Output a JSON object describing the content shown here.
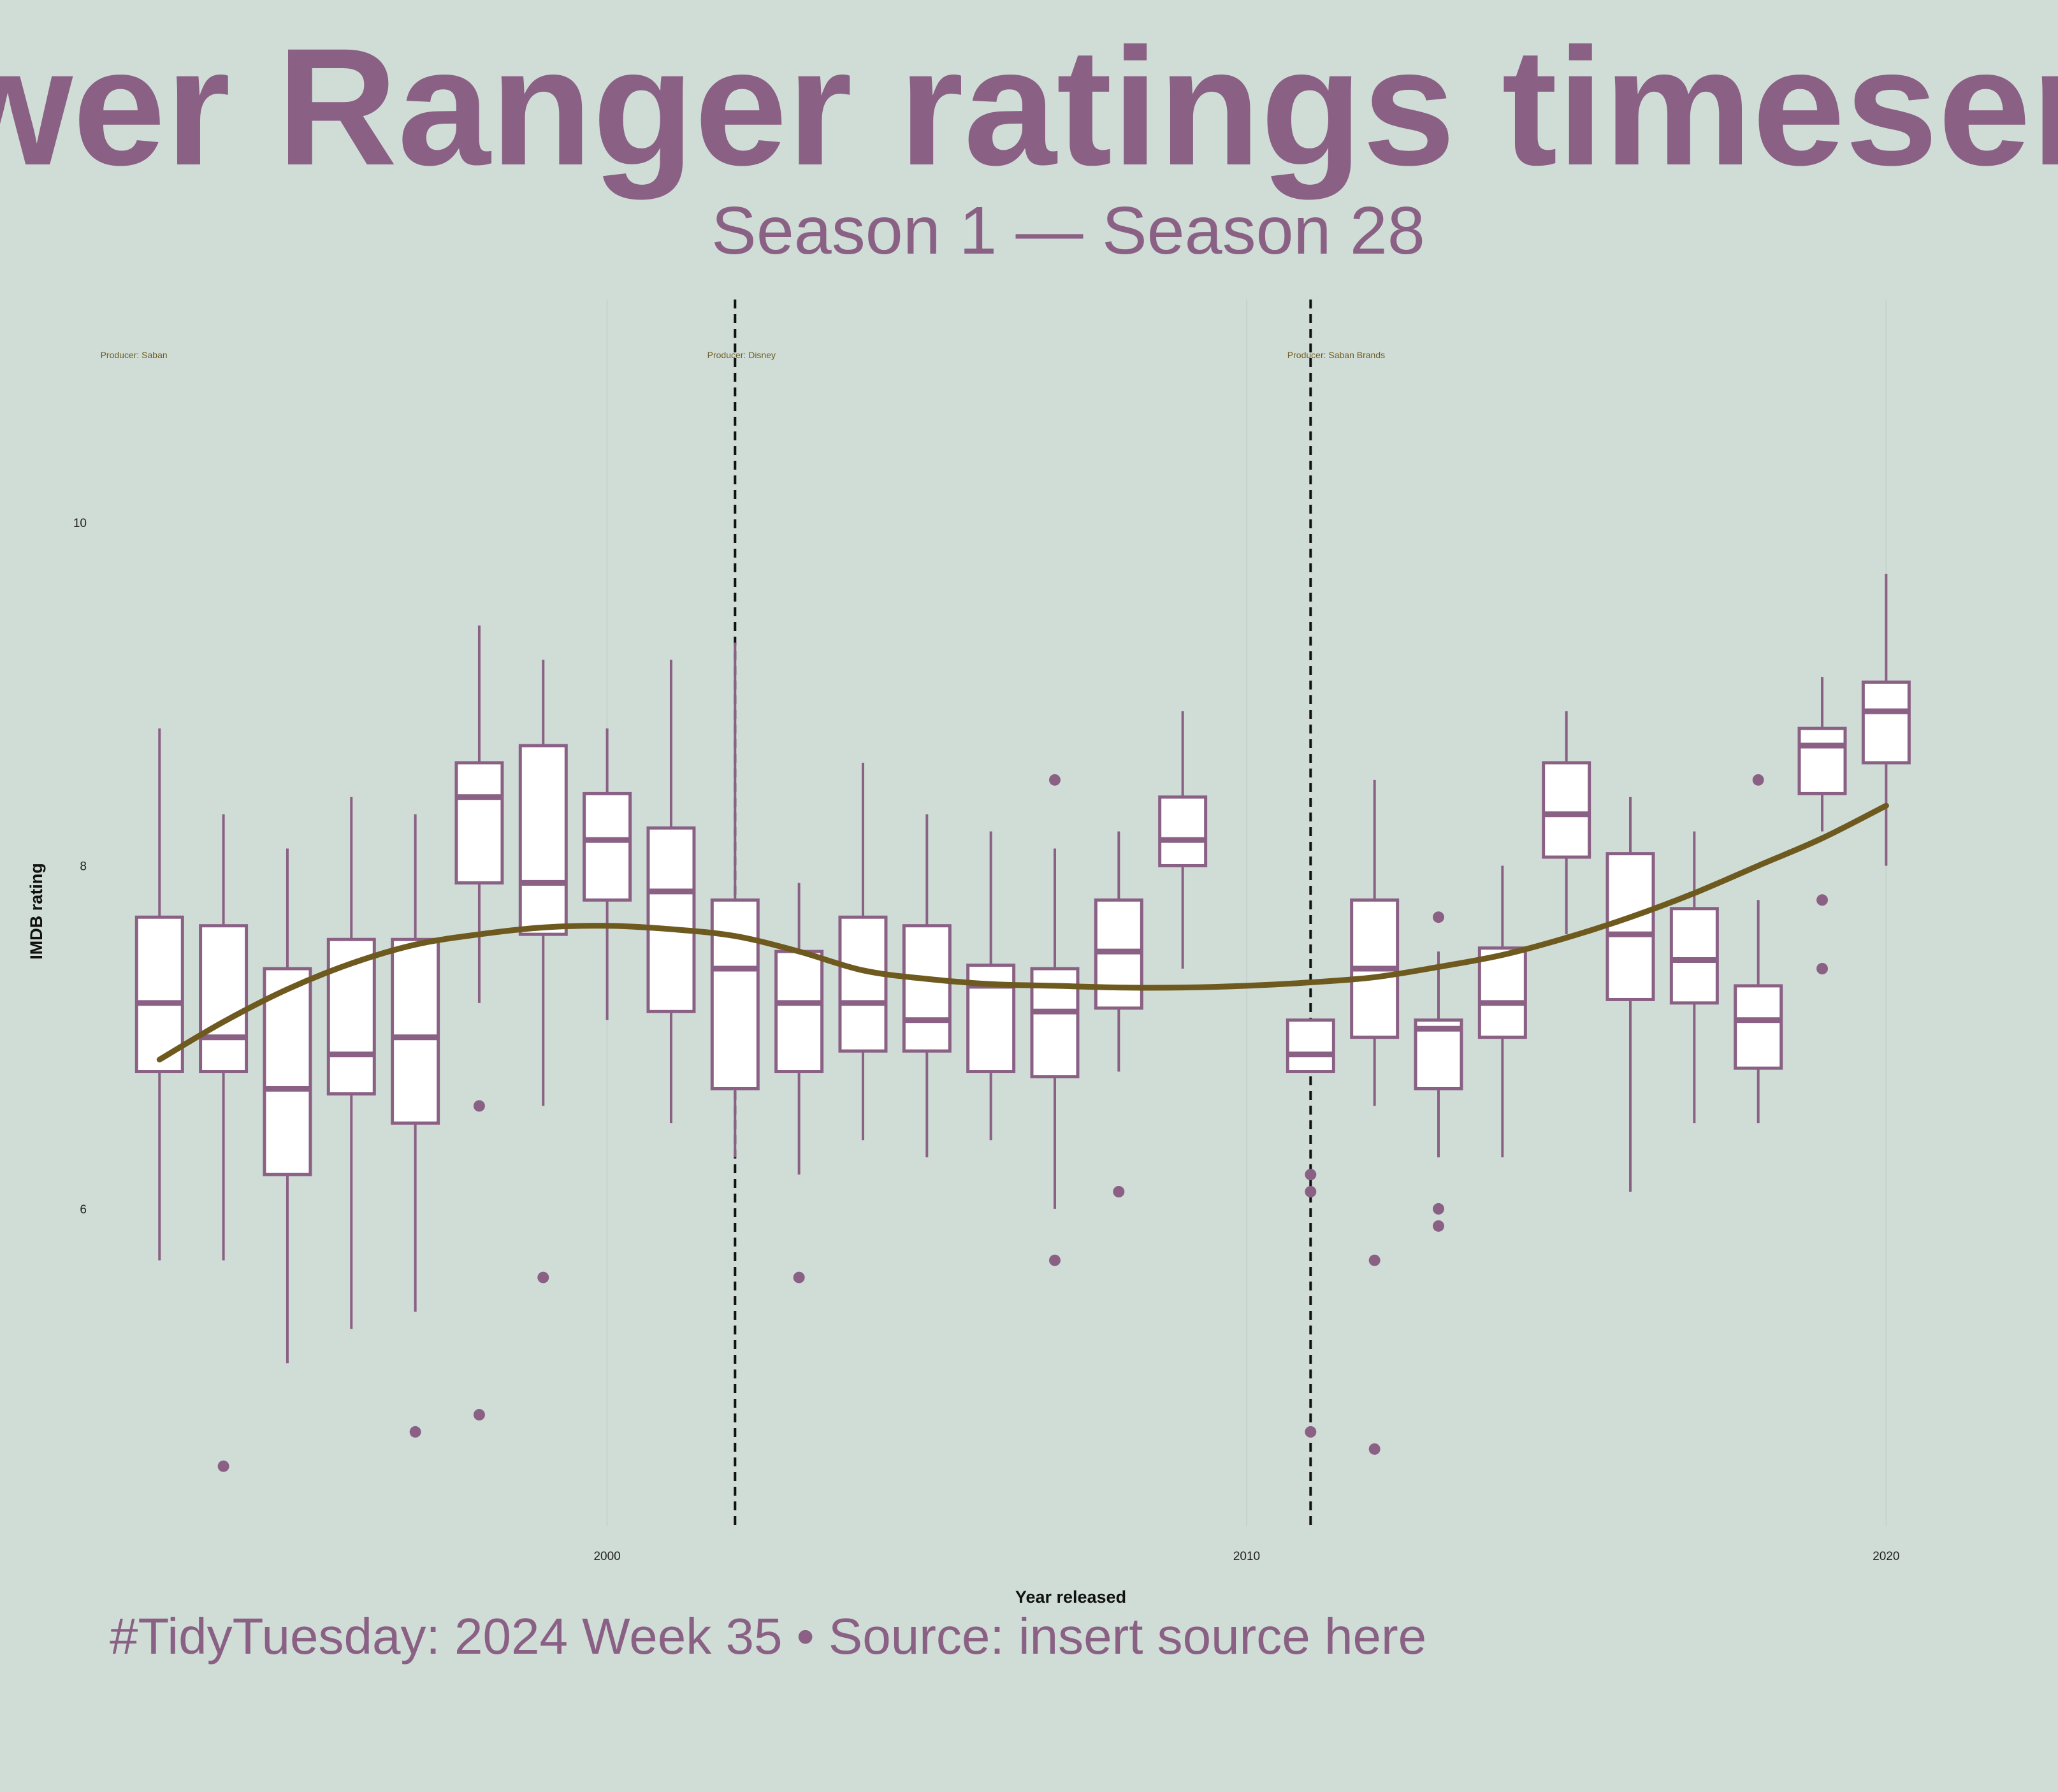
{
  "title": "Power Ranger ratings timeseries",
  "subtitle": "Season 1 — Season 28",
  "caption": "#TidyTuesday: 2024 Week 35 • Source: insert source here",
  "colors": {
    "background": "#d0ddd7",
    "accent": "#8a6184",
    "trend": "#6e5a1e",
    "box_fill": "#ffffff",
    "grid": "#c6d3cd",
    "dashed": "#111111"
  },
  "chart_data": {
    "type": "boxplot",
    "xlabel": "Year released",
    "ylabel": "IMDB rating",
    "xlim": [
      1992.2,
      2021.9
    ],
    "ylim": [
      4.15,
      11.3
    ],
    "x_ticks": [
      2000,
      2010,
      2020
    ],
    "y_ticks": [
      6,
      8,
      10
    ],
    "grid": "vertical major lines only",
    "producer_eras": [
      {
        "label": "Producer: Saban",
        "x": 1992.6
      },
      {
        "label": "Producer: Disney",
        "x": 2002.1
      },
      {
        "label": "Producer: Saban Brands",
        "x": 2011.4
      }
    ],
    "era_breaks": [
      2002,
      2011
    ],
    "boxes": [
      {
        "year": 1993,
        "min": 5.7,
        "q1": 6.8,
        "median": 7.2,
        "q3": 7.7,
        "max": 8.8,
        "outliers": []
      },
      {
        "year": 1994,
        "min": 5.7,
        "q1": 6.8,
        "median": 7.0,
        "q3": 7.65,
        "max": 8.3,
        "outliers": [
          4.5
        ]
      },
      {
        "year": 1995,
        "min": 5.1,
        "q1": 6.2,
        "median": 6.7,
        "q3": 7.4,
        "max": 8.1,
        "outliers": []
      },
      {
        "year": 1996,
        "min": 5.3,
        "q1": 6.67,
        "median": 6.9,
        "q3": 7.57,
        "max": 8.4,
        "outliers": []
      },
      {
        "year": 1997,
        "min": 5.4,
        "q1": 6.5,
        "median": 7.0,
        "q3": 7.57,
        "max": 8.3,
        "outliers": [
          4.7
        ]
      },
      {
        "year": 1998,
        "min": 7.2,
        "q1": 7.9,
        "median": 8.4,
        "q3": 8.6,
        "max": 9.4,
        "outliers": [
          6.6,
          4.8
        ]
      },
      {
        "year": 1999,
        "min": 6.6,
        "q1": 7.6,
        "median": 7.9,
        "q3": 8.7,
        "max": 9.2,
        "outliers": [
          5.6
        ]
      },
      {
        "year": 2000,
        "min": 7.1,
        "q1": 7.8,
        "median": 8.15,
        "q3": 8.42,
        "max": 8.8,
        "outliers": []
      },
      {
        "year": 2001,
        "min": 6.5,
        "q1": 7.15,
        "median": 7.85,
        "q3": 8.22,
        "max": 9.2,
        "outliers": []
      },
      {
        "year": 2002,
        "min": 6.3,
        "q1": 6.7,
        "median": 7.4,
        "q3": 7.8,
        "max": 9.3,
        "outliers": []
      },
      {
        "year": 2003,
        "min": 6.2,
        "q1": 6.8,
        "median": 7.2,
        "q3": 7.5,
        "max": 7.9,
        "outliers": [
          5.6
        ]
      },
      {
        "year": 2004,
        "min": 6.4,
        "q1": 6.92,
        "median": 7.2,
        "q3": 7.7,
        "max": 8.6,
        "outliers": []
      },
      {
        "year": 2005,
        "min": 6.3,
        "q1": 6.92,
        "median": 7.1,
        "q3": 7.65,
        "max": 8.3,
        "outliers": []
      },
      {
        "year": 2006,
        "min": 6.4,
        "q1": 6.8,
        "median": 7.3,
        "q3": 7.42,
        "max": 8.2,
        "outliers": []
      },
      {
        "year": 2007,
        "min": 6.0,
        "q1": 6.77,
        "median": 7.15,
        "q3": 7.4,
        "max": 8.1,
        "outliers": [
          8.5,
          5.7
        ]
      },
      {
        "year": 2008,
        "min": 6.8,
        "q1": 7.17,
        "median": 7.5,
        "q3": 7.8,
        "max": 8.2,
        "outliers": [
          6.1
        ]
      },
      {
        "year": 2009,
        "min": 7.4,
        "q1": 8.0,
        "median": 8.15,
        "q3": 8.4,
        "max": 8.9,
        "outliers": []
      },
      {
        "year": 2011,
        "min": 6.8,
        "q1": 6.8,
        "median": 6.9,
        "q3": 7.1,
        "max": 7.1,
        "outliers": [
          6.2,
          6.1,
          4.7
        ]
      },
      {
        "year": 2012,
        "min": 6.6,
        "q1": 7.0,
        "median": 7.4,
        "q3": 7.8,
        "max": 8.5,
        "outliers": [
          5.7,
          4.6
        ]
      },
      {
        "year": 2013,
        "min": 6.3,
        "q1": 6.7,
        "median": 7.05,
        "q3": 7.1,
        "max": 7.5,
        "outliers": [
          7.7,
          6.0,
          5.9
        ]
      },
      {
        "year": 2014,
        "min": 6.3,
        "q1": 7.0,
        "median": 7.2,
        "q3": 7.52,
        "max": 8.0,
        "outliers": []
      },
      {
        "year": 2015,
        "min": 7.6,
        "q1": 8.05,
        "median": 8.3,
        "q3": 8.6,
        "max": 8.9,
        "outliers": []
      },
      {
        "year": 2016,
        "min": 6.1,
        "q1": 7.22,
        "median": 7.6,
        "q3": 8.07,
        "max": 8.4,
        "outliers": []
      },
      {
        "year": 2017,
        "min": 6.5,
        "q1": 7.2,
        "median": 7.45,
        "q3": 7.75,
        "max": 8.2,
        "outliers": []
      },
      {
        "year": 2018,
        "min": 6.5,
        "q1": 6.82,
        "median": 7.1,
        "q3": 7.3,
        "max": 7.8,
        "outliers": [
          8.5
        ]
      },
      {
        "year": 2019,
        "min": 8.2,
        "q1": 8.42,
        "median": 8.7,
        "q3": 8.8,
        "max": 9.1,
        "outliers": [
          7.8,
          7.4
        ]
      },
      {
        "year": 2020,
        "min": 8.0,
        "q1": 8.6,
        "median": 8.9,
        "q3": 9.07,
        "max": 9.7,
        "outliers": []
      }
    ],
    "trend_line": {
      "x": [
        1993,
        1994,
        1995,
        1996,
        1997,
        1998,
        1999,
        2000,
        2001,
        2002,
        2003,
        2004,
        2005,
        2006,
        2007,
        2008,
        2009,
        2010,
        2011,
        2012,
        2013,
        2014,
        2015,
        2016,
        2017,
        2018,
        2019,
        2020
      ],
      "y": [
        6.87,
        7.09,
        7.28,
        7.43,
        7.54,
        7.6,
        7.64,
        7.65,
        7.63,
        7.59,
        7.5,
        7.39,
        7.34,
        7.31,
        7.3,
        7.29,
        7.29,
        7.3,
        7.32,
        7.35,
        7.41,
        7.48,
        7.58,
        7.7,
        7.84,
        8.0,
        8.16,
        8.35
      ]
    }
  }
}
